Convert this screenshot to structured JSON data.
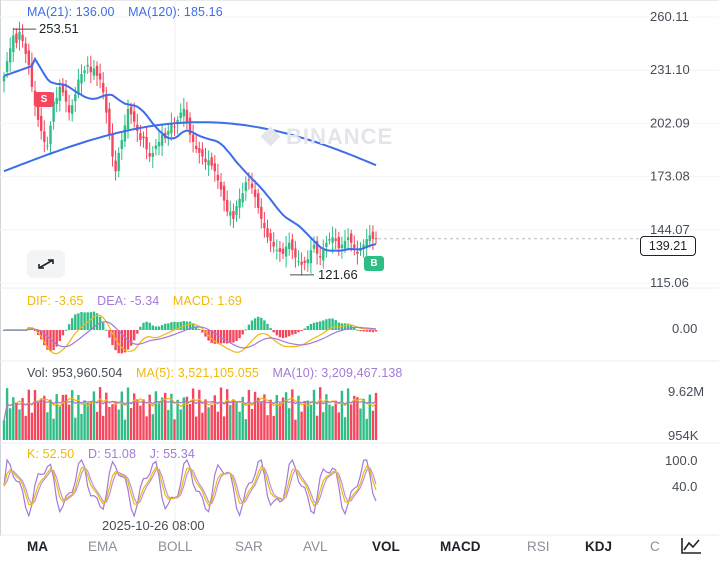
{
  "main": {
    "ma_labels": [
      {
        "text": "MA(21): 136.00",
        "color": "#3d6de8"
      },
      {
        "text": "MA(120): 185.16",
        "color": "#3d6de8"
      }
    ],
    "price_axis": [
      "260.11",
      "231.10",
      "202.09",
      "173.08",
      "144.07",
      "115.06"
    ],
    "current_price": "139.21",
    "high_label": "253.51",
    "low_label": "121.66",
    "watermark": "BINANCE",
    "sell_marker": "S",
    "buy_marker": "B"
  },
  "macd": {
    "labels": [
      {
        "text": "DIF: -3.65",
        "color": "#f0b90b"
      },
      {
        "text": "DEA: -5.34",
        "color": "#a37ad6"
      },
      {
        "text": "MACD: 1.69",
        "color": "#f0b90b"
      }
    ],
    "axis": [
      "0.00"
    ]
  },
  "volume": {
    "labels": [
      {
        "text": "Vol: 953,960.504",
        "color": "#474d57"
      },
      {
        "text": "MA(5): 3,521,105.055",
        "color": "#f0b90b"
      },
      {
        "text": "MA(10): 3,209,467.138",
        "color": "#a37ad6"
      }
    ],
    "axis": [
      "9.62M",
      "954K"
    ]
  },
  "kdj": {
    "labels": [
      {
        "text": "K: 52.50",
        "color": "#f0b90b"
      },
      {
        "text": "D: 51.08",
        "color": "#a37ad6"
      },
      {
        "text": "J: 55.34",
        "color": "#a37ad6"
      }
    ],
    "axis": [
      "100.0",
      "40.0"
    ]
  },
  "date_label": "2025-10-26 08:00",
  "tabs": [
    "MA",
    "EMA",
    "BOLL",
    "SAR",
    "AVL",
    "VOL",
    "MACD",
    "RSI",
    "KDJ",
    "C"
  ],
  "colors": {
    "up": "#2ebd85",
    "down": "#f6465d",
    "ma_line": "#3d6de8",
    "yellow": "#f0b90b",
    "purple": "#a37ad6"
  },
  "chart_data": {
    "type": "candlestick",
    "price_range": [
      115.06,
      260.11
    ],
    "closes": [
      228,
      236,
      243,
      250,
      246,
      252,
      247,
      240,
      234,
      222,
      212,
      204,
      198,
      192,
      190,
      201,
      214,
      216,
      222,
      219,
      214,
      208,
      212,
      218,
      226,
      229,
      231,
      234,
      230,
      232,
      228,
      226,
      219,
      208,
      196,
      184,
      176,
      186,
      193,
      201,
      210,
      207,
      203,
      198,
      193,
      194,
      188,
      184,
      186,
      190,
      192,
      196,
      194,
      198,
      202,
      200,
      204,
      208,
      210,
      203,
      196,
      192,
      188,
      186,
      184,
      181,
      182,
      179,
      176,
      171,
      166,
      160,
      154,
      154,
      150,
      157,
      161,
      164,
      170,
      171,
      167,
      162,
      156,
      150,
      145,
      140,
      138,
      135,
      133,
      132,
      131,
      135,
      137,
      133,
      129,
      127,
      125,
      126,
      128,
      133,
      136,
      131,
      129,
      133,
      137,
      139,
      140,
      138,
      134,
      136,
      138,
      140,
      137,
      134,
      131,
      133,
      136,
      139,
      141,
      139,
      139.21
    ],
    "volume_range": [
      954000,
      9620000
    ],
    "macd_zero": 0.0,
    "kdj_ticks": [
      100.0,
      40.0
    ]
  }
}
